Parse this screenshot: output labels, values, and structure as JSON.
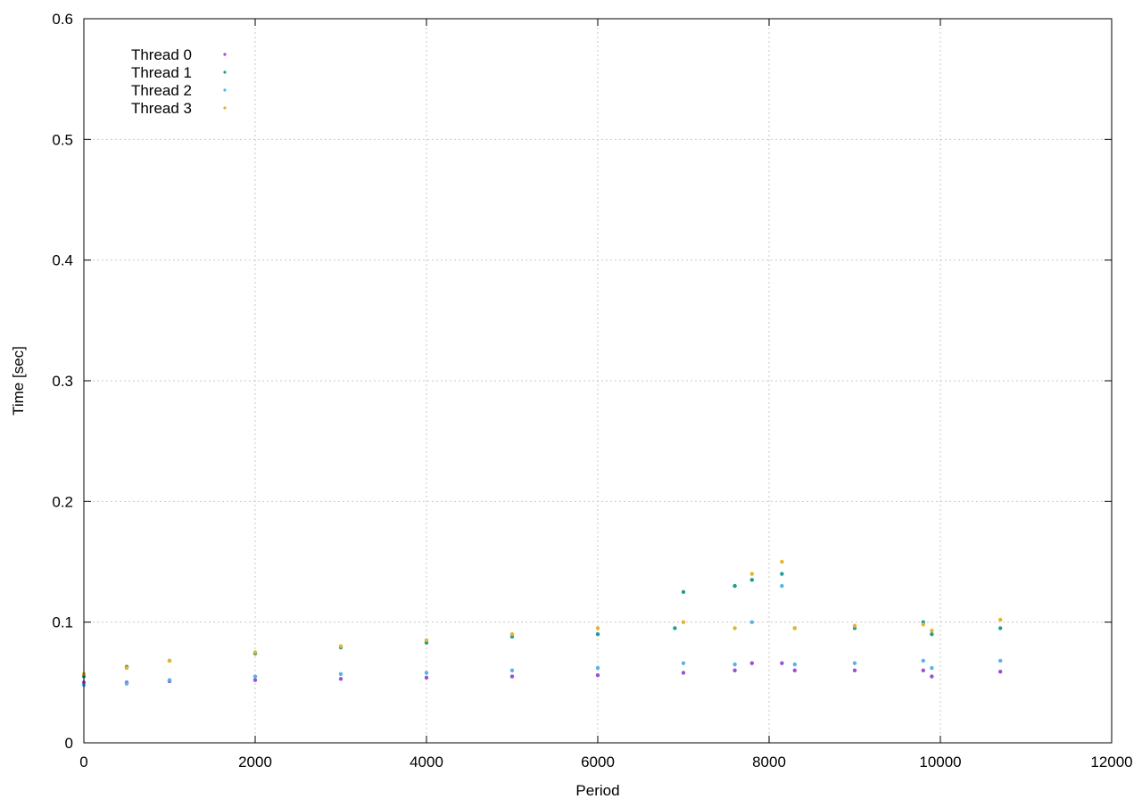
{
  "chart_data": {
    "type": "scatter",
    "xlabel": "Period",
    "ylabel": "Time [sec]",
    "xlim": [
      0,
      12000
    ],
    "ylim": [
      0,
      0.6
    ],
    "x_ticks": [
      "0",
      "2000",
      "4000",
      "6000",
      "8000",
      "10000",
      "12000"
    ],
    "y_ticks": [
      "0",
      "0.1",
      "0.2",
      "0.3",
      "0.4",
      "0.5",
      "0.6"
    ],
    "grid": true,
    "legend_position": "top-left",
    "series": [
      {
        "name": "Thread 0",
        "color": "#9b4fd6",
        "points": [
          [
            0,
            0.05
          ],
          [
            500,
            0.05
          ],
          [
            1000,
            0.051
          ],
          [
            2000,
            0.052
          ],
          [
            3000,
            0.053
          ],
          [
            4000,
            0.054
          ],
          [
            5000,
            0.055
          ],
          [
            6000,
            0.056
          ],
          [
            7000,
            0.058
          ],
          [
            7600,
            0.06
          ],
          [
            7800,
            0.066
          ],
          [
            8150,
            0.066
          ],
          [
            8300,
            0.06
          ],
          [
            9000,
            0.06
          ],
          [
            9800,
            0.06
          ],
          [
            9900,
            0.055
          ],
          [
            10700,
            0.059
          ]
        ]
      },
      {
        "name": "Thread 1",
        "color": "#1f9e8f",
        "points": [
          [
            0,
            0.055
          ],
          [
            500,
            0.063
          ],
          [
            1000,
            0.068
          ],
          [
            2000,
            0.074
          ],
          [
            3000,
            0.079
          ],
          [
            4000,
            0.083
          ],
          [
            5000,
            0.088
          ],
          [
            6000,
            0.09
          ],
          [
            6900,
            0.095
          ],
          [
            7000,
            0.125
          ],
          [
            7600,
            0.13
          ],
          [
            7800,
            0.135
          ],
          [
            8150,
            0.14
          ],
          [
            8300,
            0.095
          ],
          [
            9000,
            0.095
          ],
          [
            9800,
            0.1
          ],
          [
            9900,
            0.09
          ],
          [
            10700,
            0.095
          ]
        ]
      },
      {
        "name": "Thread 2",
        "color": "#56b4e9",
        "points": [
          [
            0,
            0.048
          ],
          [
            500,
            0.049
          ],
          [
            1000,
            0.052
          ],
          [
            2000,
            0.055
          ],
          [
            3000,
            0.057
          ],
          [
            4000,
            0.058
          ],
          [
            5000,
            0.06
          ],
          [
            6000,
            0.062
          ],
          [
            7000,
            0.066
          ],
          [
            7600,
            0.065
          ],
          [
            7800,
            0.1
          ],
          [
            8150,
            0.13
          ],
          [
            8300,
            0.065
          ],
          [
            9000,
            0.066
          ],
          [
            9800,
            0.068
          ],
          [
            9900,
            0.062
          ],
          [
            10700,
            0.068
          ]
        ]
      },
      {
        "name": "Thread 3",
        "color": "#e6b32e",
        "points": [
          [
            0,
            0.057
          ],
          [
            500,
            0.062
          ],
          [
            1000,
            0.068
          ],
          [
            2000,
            0.075
          ],
          [
            3000,
            0.08
          ],
          [
            4000,
            0.085
          ],
          [
            5000,
            0.09
          ],
          [
            6000,
            0.095
          ],
          [
            7000,
            0.1
          ],
          [
            7600,
            0.095
          ],
          [
            7800,
            0.14
          ],
          [
            8150,
            0.15
          ],
          [
            8300,
            0.095
          ],
          [
            9000,
            0.097
          ],
          [
            9800,
            0.098
          ],
          [
            9900,
            0.093
          ],
          [
            10700,
            0.102
          ]
        ]
      }
    ]
  }
}
